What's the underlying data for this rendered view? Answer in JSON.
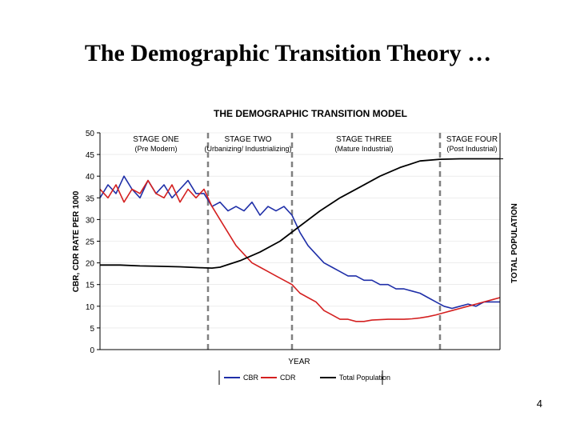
{
  "slide": {
    "title": "The Demographic Transition Theory …",
    "page_number": "4"
  },
  "colors": {
    "cbr": "#1f2fa8",
    "cdr": "#d42020",
    "total": "#000000",
    "divider": "#808080",
    "grid": "#e0e0e0"
  },
  "chart_data": {
    "type": "line",
    "title": "THE DEMOGRAPHIC TRANSITION MODEL",
    "xlabel": "YEAR",
    "ylabel": "CBR, CDR RATE PER 1000",
    "ylabel_right": "TOTAL POPULATION",
    "ylim": [
      0,
      50
    ],
    "yticks": [
      0,
      5,
      10,
      15,
      20,
      25,
      30,
      35,
      40,
      45,
      50
    ],
    "ytick_labels": [
      "0",
      "5",
      "10",
      "15",
      "20",
      "25",
      "30",
      "35",
      "40",
      "45",
      "50"
    ],
    "xlim": [
      0,
      100
    ],
    "stage_boundaries": [
      27,
      48,
      85
    ],
    "stages": [
      {
        "label": "STAGE ONE",
        "sublabel": "(Pre Modern)",
        "x": 14
      },
      {
        "label": "STAGE TWO",
        "sublabel": "(Urbanizing/ Industrializing)",
        "x": 37
      },
      {
        "label": "STAGE THREE",
        "sublabel": "(Mature Industrial)",
        "x": 66
      },
      {
        "label": "STAGE FOUR",
        "sublabel": "(Post Industrial)",
        "x": 93
      }
    ],
    "legend": [
      "CBR",
      "CDR",
      "Total Population"
    ],
    "series": [
      {
        "name": "CBR",
        "x": [
          0,
          2,
          4,
          6,
          8,
          10,
          12,
          14,
          16,
          18,
          20,
          22,
          24,
          26,
          28,
          30,
          32,
          34,
          36,
          38,
          40,
          42,
          44,
          46,
          48,
          50,
          52,
          54,
          56,
          58,
          60,
          62,
          64,
          66,
          68,
          70,
          72,
          74,
          76,
          78,
          80,
          82,
          84,
          86,
          88,
          90,
          92,
          94,
          96,
          98,
          100
        ],
        "values": [
          35,
          38,
          36,
          40,
          37,
          35,
          39,
          36,
          38,
          35,
          37,
          39,
          36,
          36,
          33,
          34,
          32,
          33,
          32,
          34,
          31,
          33,
          32,
          33,
          31,
          27,
          24,
          22,
          20,
          19,
          18,
          17,
          17,
          16,
          16,
          15,
          15,
          14,
          14,
          13.5,
          13,
          12,
          11,
          10,
          9.5,
          10,
          10.5,
          10,
          11,
          11,
          11
        ]
      },
      {
        "name": "CDR",
        "x": [
          0,
          2,
          4,
          6,
          8,
          10,
          12,
          14,
          16,
          18,
          20,
          22,
          24,
          26,
          28,
          30,
          32,
          34,
          36,
          38,
          40,
          42,
          44,
          46,
          48,
          50,
          52,
          54,
          56,
          58,
          60,
          62,
          64,
          66,
          68,
          70,
          72,
          74,
          76,
          78,
          80,
          82,
          84,
          86,
          88,
          90,
          92,
          94,
          96,
          98,
          100
        ],
        "values": [
          37,
          35,
          38,
          34,
          37,
          36,
          39,
          36,
          35,
          38,
          34,
          37,
          35,
          37,
          33,
          30,
          27,
          24,
          22,
          20,
          19,
          18,
          17,
          16,
          15,
          13,
          12,
          11,
          9,
          8,
          7,
          7,
          6.5,
          6.5,
          6.8,
          6.9,
          7,
          7,
          7,
          7.1,
          7.3,
          7.6,
          8,
          8.5,
          9,
          9.5,
          10,
          10.5,
          11,
          11.5,
          12
        ]
      },
      {
        "name": "Total Population",
        "x": [
          0,
          5,
          10,
          15,
          20,
          25,
          28,
          30,
          35,
          40,
          45,
          50,
          55,
          60,
          65,
          70,
          75,
          80,
          85,
          90,
          95,
          100
        ],
        "values": [
          19.5,
          19.5,
          19.3,
          19.2,
          19.1,
          18.9,
          18.8,
          19.0,
          20.5,
          22.5,
          25,
          28.5,
          32,
          35,
          37.5,
          40,
          42,
          43.5,
          43.9,
          44,
          44,
          44
        ]
      }
    ]
  }
}
